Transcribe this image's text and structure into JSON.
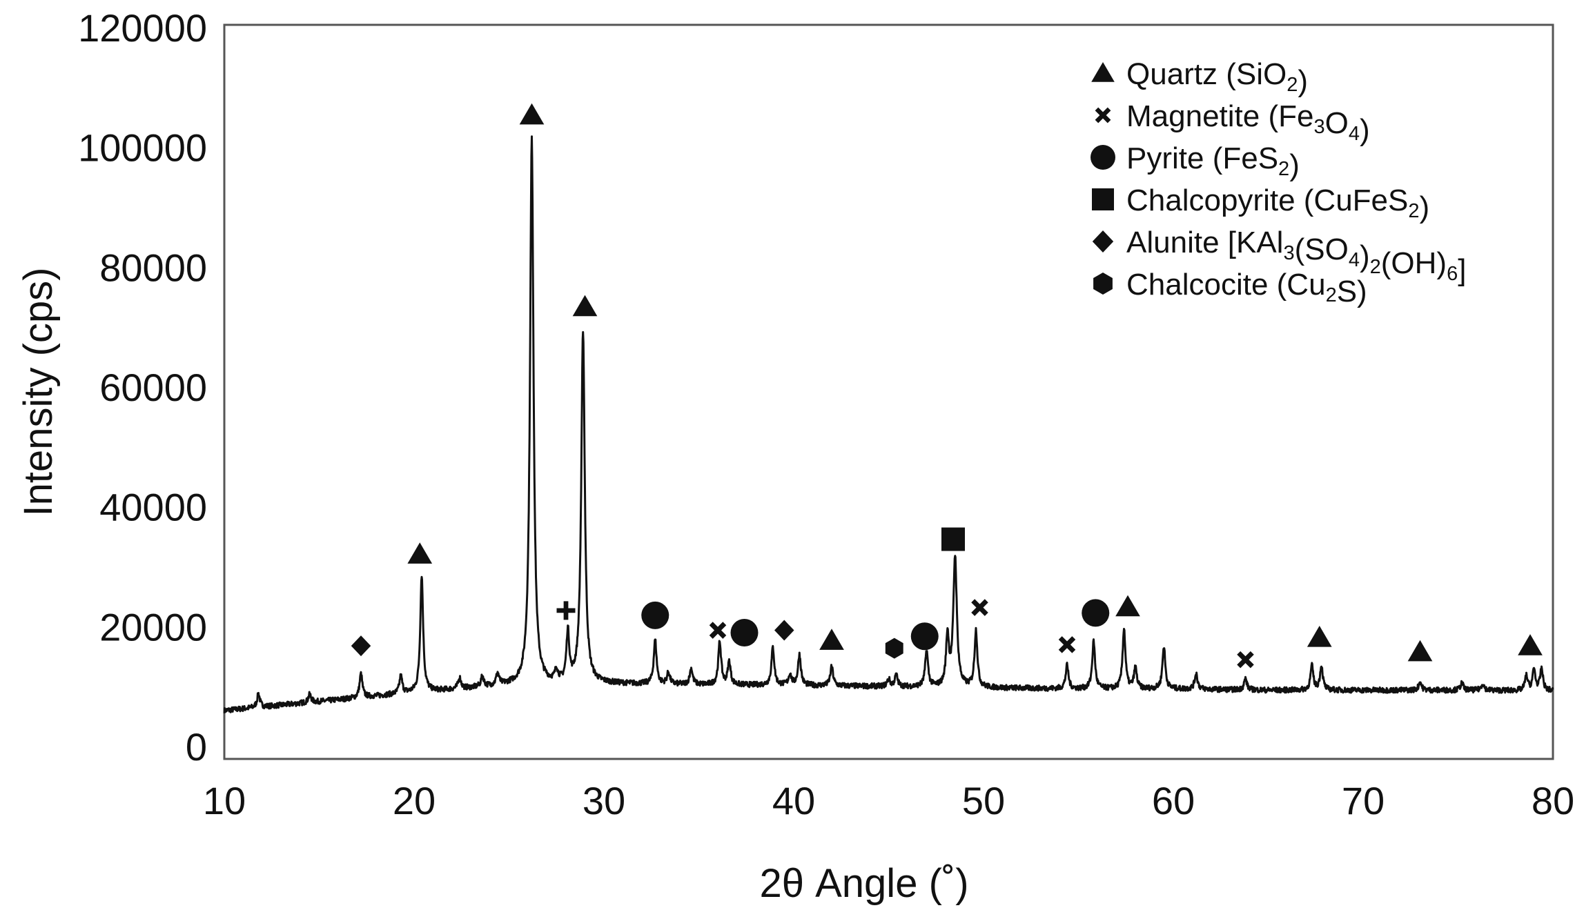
{
  "chart_data": {
    "type": "line",
    "title": "",
    "xlabel": "2θ Angle (˚)",
    "ylabel": "Intensity (cps)",
    "xlim": [
      10,
      80
    ],
    "ylim": [
      0,
      120000
    ],
    "x_ticks": [
      10,
      20,
      30,
      40,
      50,
      60,
      70,
      80
    ],
    "y_ticks": [
      0,
      20000,
      40000,
      60000,
      80000,
      100000,
      120000
    ],
    "x_tick_labels": [
      "10",
      "20",
      "30",
      "40",
      "50",
      "60",
      "70",
      "80"
    ],
    "y_tick_labels": [
      "0",
      "20000",
      "40000",
      "60000",
      "80000",
      "100000",
      "120000"
    ],
    "grid": false,
    "legend_position": "top-right",
    "line_color": "#111111",
    "background_segments": [
      {
        "x": 10,
        "y": 6000
      },
      {
        "x": 15,
        "y": 7500
      },
      {
        "x": 20,
        "y": 9000
      },
      {
        "x": 25,
        "y": 10200
      },
      {
        "x": 30,
        "y": 10500
      },
      {
        "x": 35,
        "y": 10300
      },
      {
        "x": 40,
        "y": 10200
      },
      {
        "x": 45,
        "y": 10000
      },
      {
        "x": 50,
        "y": 9800
      },
      {
        "x": 55,
        "y": 9600
      },
      {
        "x": 60,
        "y": 9600
      },
      {
        "x": 65,
        "y": 9400
      },
      {
        "x": 70,
        "y": 9400
      },
      {
        "x": 75,
        "y": 9400
      },
      {
        "x": 80,
        "y": 9300
      }
    ],
    "series": [
      {
        "peaks": [
          {
            "x": 11.8,
            "y": 8800
          },
          {
            "x": 14.5,
            "y": 8700
          },
          {
            "x": 17.2,
            "y": 12100
          },
          {
            "x": 19.3,
            "y": 11700
          },
          {
            "x": 20.4,
            "y": 28600
          },
          {
            "x": 22.4,
            "y": 11400
          },
          {
            "x": 23.6,
            "y": 11600
          },
          {
            "x": 24.4,
            "y": 12000
          },
          {
            "x": 26.2,
            "y": 101300
          },
          {
            "x": 27.5,
            "y": 12300
          },
          {
            "x": 28.1,
            "y": 18600
          },
          {
            "x": 28.9,
            "y": 69300
          },
          {
            "x": 32.7,
            "y": 17700
          },
          {
            "x": 33.4,
            "y": 12300
          },
          {
            "x": 34.6,
            "y": 13000
          },
          {
            "x": 36.1,
            "y": 17400
          },
          {
            "x": 36.6,
            "y": 14100
          },
          {
            "x": 38.9,
            "y": 16500
          },
          {
            "x": 39.8,
            "y": 12000
          },
          {
            "x": 40.3,
            "y": 15300
          },
          {
            "x": 42.0,
            "y": 13300
          },
          {
            "x": 45.0,
            "y": 11200
          },
          {
            "x": 45.4,
            "y": 11900
          },
          {
            "x": 47.0,
            "y": 15900
          },
          {
            "x": 48.1,
            "y": 18200
          },
          {
            "x": 48.5,
            "y": 31600
          },
          {
            "x": 49.6,
            "y": 19300
          },
          {
            "x": 54.4,
            "y": 13500
          },
          {
            "x": 55.8,
            "y": 17500
          },
          {
            "x": 57.4,
            "y": 19600
          },
          {
            "x": 58.0,
            "y": 13100
          },
          {
            "x": 59.5,
            "y": 16700
          },
          {
            "x": 61.2,
            "y": 12200
          },
          {
            "x": 63.8,
            "y": 11300
          },
          {
            "x": 67.3,
            "y": 13400
          },
          {
            "x": 67.8,
            "y": 13400
          },
          {
            "x": 73.0,
            "y": 10800
          },
          {
            "x": 75.2,
            "y": 10600
          },
          {
            "x": 76.3,
            "y": 10500
          },
          {
            "x": 78.6,
            "y": 11700
          },
          {
            "x": 79.0,
            "y": 12800
          },
          {
            "x": 79.4,
            "y": 12900
          }
        ]
      }
    ],
    "phase_markers": [
      {
        "phase": "alunite",
        "x": 17.2,
        "y": 16800
      },
      {
        "phase": "quartz",
        "x": 20.3,
        "y": 32100
      },
      {
        "phase": "quartz",
        "x": 26.2,
        "y": 105400
      },
      {
        "phase": "unlabeled-cross",
        "x": 28.0,
        "y": 22700
      },
      {
        "phase": "quartz",
        "x": 29.0,
        "y": 73400
      },
      {
        "phase": "pyrite",
        "x": 32.7,
        "y": 21900
      },
      {
        "phase": "magnetite",
        "x": 36.0,
        "y": 19400
      },
      {
        "phase": "pyrite",
        "x": 37.4,
        "y": 19000
      },
      {
        "phase": "alunite",
        "x": 39.5,
        "y": 19400
      },
      {
        "phase": "quartz",
        "x": 42.0,
        "y": 17700
      },
      {
        "phase": "chalcocite",
        "x": 45.3,
        "y": 16400
      },
      {
        "phase": "pyrite",
        "x": 46.9,
        "y": 18400
      },
      {
        "phase": "chalcopyrite",
        "x": 48.4,
        "y": 34600
      },
      {
        "phase": "magnetite",
        "x": 49.8,
        "y": 23200
      },
      {
        "phase": "magnetite",
        "x": 54.4,
        "y": 17000
      },
      {
        "phase": "pyrite",
        "x": 55.9,
        "y": 22300
      },
      {
        "phase": "quartz",
        "x": 57.6,
        "y": 23300
      },
      {
        "phase": "magnetite",
        "x": 63.8,
        "y": 14500
      },
      {
        "phase": "quartz",
        "x": 67.7,
        "y": 18200
      },
      {
        "phase": "quartz",
        "x": 73.0,
        "y": 15800
      },
      {
        "phase": "quartz",
        "x": 78.8,
        "y": 16800
      }
    ],
    "legend": [
      {
        "symbol": "triangle-icon",
        "parts": [
          {
            "t": "Quartz (SiO"
          },
          {
            "t": "2",
            "sub": true
          },
          {
            "t": ")"
          }
        ]
      },
      {
        "symbol": "cross-x-icon",
        "parts": [
          {
            "t": "Magnetite (Fe"
          },
          {
            "t": "3",
            "sub": true
          },
          {
            "t": "O"
          },
          {
            "t": "4",
            "sub": true
          },
          {
            "t": ")"
          }
        ]
      },
      {
        "symbol": "circle-icon",
        "parts": [
          {
            "t": "Pyrite (FeS"
          },
          {
            "t": "2",
            "sub": true
          },
          {
            "t": ")"
          }
        ]
      },
      {
        "symbol": "square-icon",
        "parts": [
          {
            "t": "Chalcopyrite (CuFeS"
          },
          {
            "t": "2",
            "sub": true
          },
          {
            "t": ")"
          }
        ]
      },
      {
        "symbol": "diamond-icon",
        "parts": [
          {
            "t": "Alunite [KAl"
          },
          {
            "t": "3",
            "sub": true
          },
          {
            "t": "(SO"
          },
          {
            "t": "4",
            "sub": true
          },
          {
            "t": ")"
          },
          {
            "t": "2",
            "sub": true
          },
          {
            "t": "(OH)"
          },
          {
            "t": "6",
            "sub": true
          },
          {
            "t": "]"
          }
        ]
      },
      {
        "symbol": "hexagon-icon",
        "parts": [
          {
            "t": "Chalcocite (Cu"
          },
          {
            "t": "2",
            "sub": true
          },
          {
            "t": "S)"
          }
        ]
      }
    ]
  }
}
